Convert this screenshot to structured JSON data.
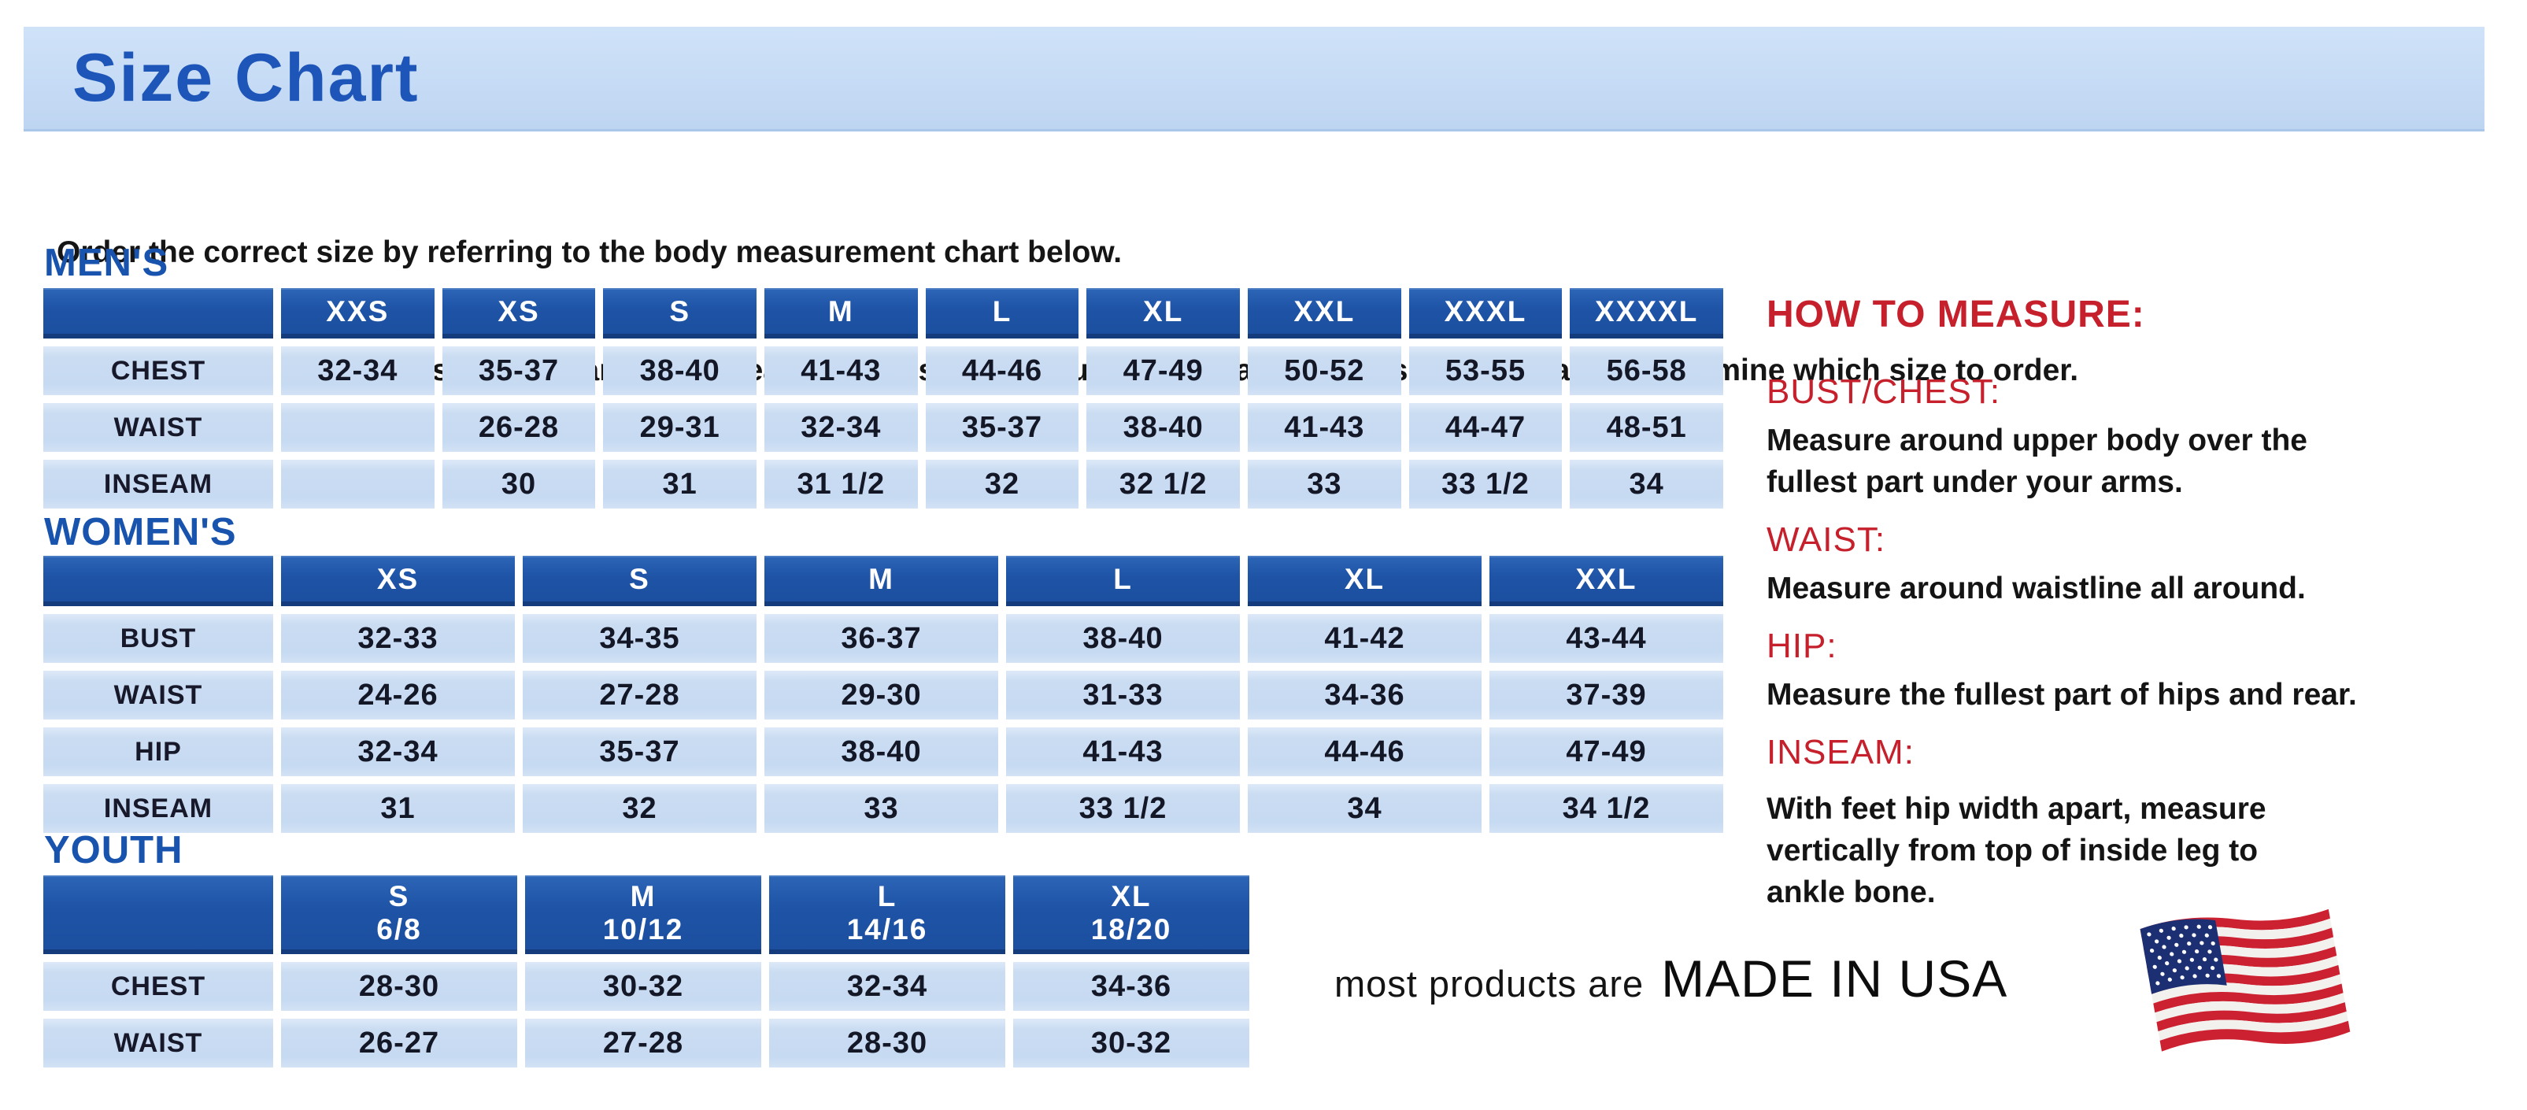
{
  "title": "Size Chart",
  "intro": {
    "line1": "Order the correct size by referring to the body measurement chart below.",
    "line2": "Measurements shown on size chart are body measurements.  Find your body measurements on the chart to determine which size to order."
  },
  "sections": {
    "mens": {
      "heading": "MEN'S",
      "columns": [
        "XXS",
        "XS",
        "S",
        "M",
        "L",
        "XL",
        "XXL",
        "XXXL",
        "XXXXL"
      ],
      "rows": [
        {
          "label": "CHEST",
          "values": [
            "32-34",
            "35-37",
            "38-40",
            "41-43",
            "44-46",
            "47-49",
            "50-52",
            "53-55",
            "56-58"
          ]
        },
        {
          "label": "WAIST",
          "values": [
            "",
            "26-28",
            "29-31",
            "32-34",
            "35-37",
            "38-40",
            "41-43",
            "44-47",
            "48-51"
          ]
        },
        {
          "label": "INSEAM",
          "values": [
            "",
            "30",
            "31",
            "31 1/2",
            "32",
            "32 1/2",
            "33",
            "33 1/2",
            "34"
          ]
        }
      ]
    },
    "womens": {
      "heading": "WOMEN'S",
      "columns": [
        "XS",
        "S",
        "M",
        "L",
        "XL",
        "XXL"
      ],
      "rows": [
        {
          "label": "BUST",
          "values": [
            "32-33",
            "34-35",
            "36-37",
            "38-40",
            "41-42",
            "43-44"
          ]
        },
        {
          "label": "WAIST",
          "values": [
            "24-26",
            "27-28",
            "29-30",
            "31-33",
            "34-36",
            "37-39"
          ]
        },
        {
          "label": "HIP",
          "values": [
            "32-34",
            "35-37",
            "38-40",
            "41-43",
            "44-46",
            "47-49"
          ]
        },
        {
          "label": "INSEAM",
          "values": [
            "31",
            "32",
            "33",
            "33 1/2",
            "34",
            "34 1/2"
          ]
        }
      ]
    },
    "youth": {
      "heading": "YOUTH",
      "columns": [
        "S\n6/8",
        "M\n10/12",
        "L\n14/16",
        "XL\n18/20"
      ],
      "rows": [
        {
          "label": "CHEST",
          "values": [
            "28-30",
            "30-32",
            "32-34",
            "34-36"
          ]
        },
        {
          "label": "WAIST",
          "values": [
            "26-27",
            "27-28",
            "28-30",
            "30-32"
          ]
        }
      ]
    }
  },
  "how_to_measure": {
    "heading": "HOW TO MEASURE:",
    "items": [
      {
        "label": "BUST/CHEST:",
        "text": "Measure around upper body over the\nfullest part under your arms."
      },
      {
        "label": "WAIST:",
        "text": "Measure around waistline all around."
      },
      {
        "label": "HIP:",
        "text": "Measure the fullest part of hips and rear."
      },
      {
        "label": "INSEAM:",
        "text": "With feet hip width apart, measure\nvertically from top of inside leg to\nankle bone."
      }
    ]
  },
  "footer": {
    "prefix": "most products are",
    "emphasis": "MADE IN USA",
    "flag_icon": "us-flag-icon"
  },
  "colors": {
    "header_blue": "#1e53a6",
    "cell_blue": "#c6daf2",
    "banner_blue": "#c6dbf5",
    "heading_blue": "#1853ae",
    "title_blue": "#1d55b8",
    "accent_red": "#c5202b",
    "flag_red": "#cc2131",
    "flag_navy": "#1c2f72"
  }
}
